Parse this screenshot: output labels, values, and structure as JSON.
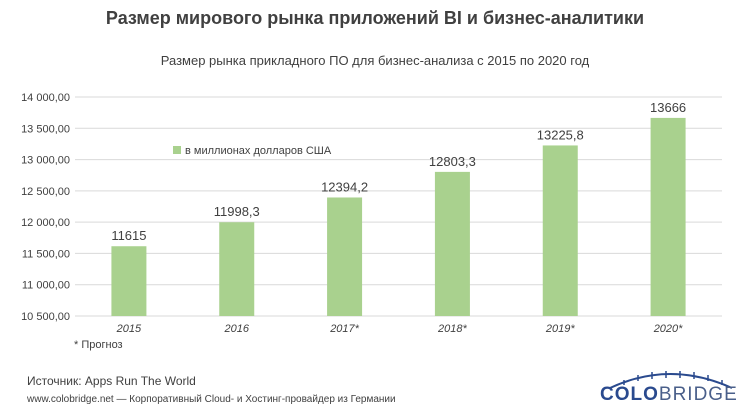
{
  "title": "Размер мирового рынка приложений BI и бизнес-аналитики",
  "subtitle": "Размер рынка прикладного ПО для бизнес-анализа  с 2015 по 2020 год",
  "footnote": "* Прогноз",
  "source": "Источник: Apps Run The World",
  "site": "www.colobridge.net — Корпоративный Cloud- и Хостинг-провайдер из Германии",
  "logo": {
    "part1": "COLO",
    "part2": "BRIDGE"
  },
  "colors": {
    "bar": "#a9d18e",
    "grid": "#d9d9d9",
    "text": "#404040",
    "logo_blue": "#2a4a8e"
  },
  "chart_data": {
    "type": "bar",
    "categories": [
      "2015",
      "2016",
      "2017*",
      "2018*",
      "2019*",
      "2020*"
    ],
    "series": [
      {
        "name": "в миллионах долларов США",
        "values": [
          11615,
          11998.3,
          12394.2,
          12803.3,
          13225.8,
          13666
        ]
      }
    ],
    "data_labels": [
      "11615",
      "11998,3",
      "12394,2",
      "12803,3",
      "13225,8",
      "13666"
    ],
    "ylim": [
      10500,
      14000
    ],
    "yticks": [
      10500,
      11000,
      11500,
      12000,
      12500,
      13000,
      13500,
      14000
    ],
    "ytick_labels": [
      "10 500,00",
      "11 000,00",
      "11 500,00",
      "12 000,00",
      "12 500,00",
      "13 000,00",
      "13 500,00",
      "14 000,00"
    ],
    "grid": true,
    "legend_position": "top-left"
  }
}
